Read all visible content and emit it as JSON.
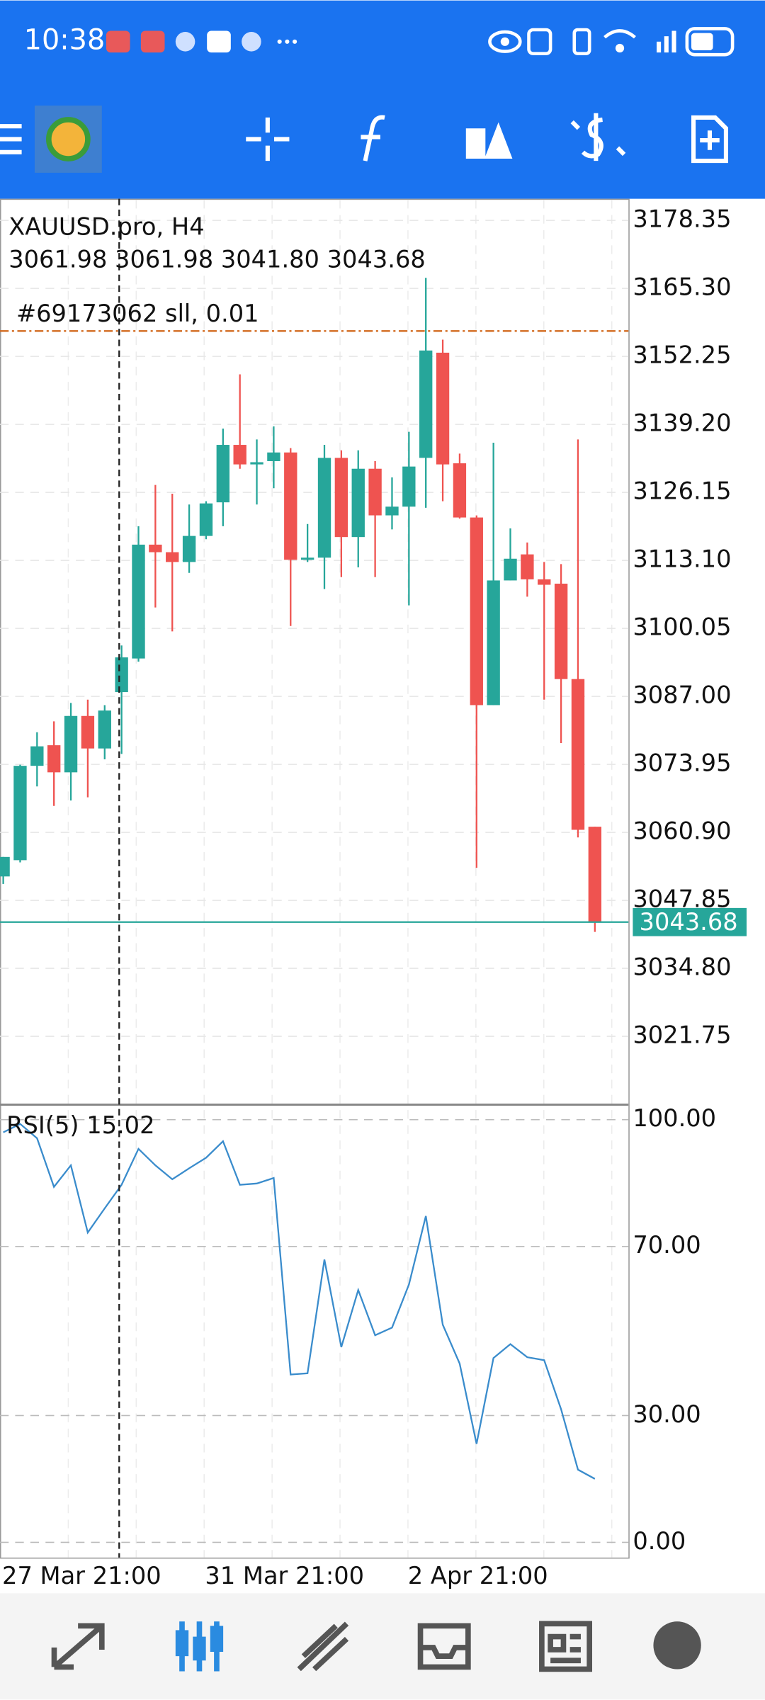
{
  "status_bar": {
    "time": "10:38"
  },
  "chart_data": [
    {
      "type": "candlestick",
      "title": "XAUUSD.pro, H4",
      "ohlc_text": "3061.98 3061.98 3041.80 3043.68",
      "categories": [
        "27 Mar 21:00",
        null,
        null,
        null,
        null,
        null,
        null,
        null,
        null,
        null,
        null,
        null,
        "31 Mar 21:00",
        null,
        null,
        null,
        null,
        null,
        null,
        null,
        null,
        null,
        null,
        null,
        "2 Apr 21:00",
        null,
        null,
        null,
        null,
        null,
        null,
        null,
        null,
        null,
        null,
        null
      ],
      "open": [
        3052.44,
        3055.56,
        3073.67,
        3077.62,
        3072.42,
        3083.24,
        3077.0,
        3087.82,
        3094.27,
        3116.12,
        3114.67,
        3112.79,
        3117.79,
        3124.24,
        3135.27,
        3131.52,
        3132.15,
        3133.81,
        3113.21,
        3113.62,
        3132.77,
        3117.58,
        3130.69,
        3121.74,
        3123.41,
        3132.77,
        3152.96,
        3131.73,
        3121.33,
        3085.32,
        3109.25,
        3114.25,
        3109.46,
        3108.63,
        3090.32,
        3061.98
      ],
      "high": [
        3056.18,
        3073.87,
        3080.12,
        3082.2,
        3085.74,
        3086.36,
        3085.32,
        3096.77,
        3119.66,
        3127.57,
        3125.9,
        3123.82,
        3124.45,
        3138.39,
        3148.8,
        3136.31,
        3138.81,
        3134.64,
        3120.08,
        3135.27,
        3134.23,
        3134.23,
        3132.15,
        3129.03,
        3137.77,
        3167.32,
        3155.46,
        3133.6,
        3121.74,
        3135.69,
        3119.24,
        3116.54,
        3112.79,
        3112.38,
        3136.31,
        3061.98
      ],
      "low": [
        3051.0,
        3055.14,
        3069.71,
        3065.97,
        3067.01,
        3067.63,
        3074.91,
        3075.95,
        3093.65,
        3104.05,
        3099.47,
        3110.71,
        3117.16,
        3119.66,
        3130.69,
        3123.82,
        3126.94,
        3100.51,
        3112.79,
        3107.59,
        3109.88,
        3111.75,
        3109.88,
        3119.04,
        3104.47,
        3123.2,
        3124.45,
        3121.12,
        3054.1,
        3085.32,
        3109.25,
        3106.13,
        3086.36,
        3078.04,
        3059.93,
        3041.8
      ],
      "close": [
        3056.18,
        3073.67,
        3077.41,
        3072.42,
        3083.24,
        3077.0,
        3084.28,
        3094.48,
        3116.12,
        3114.67,
        3112.79,
        3117.79,
        3124.03,
        3135.27,
        3131.52,
        3131.94,
        3133.81,
        3113.21,
        3113.62,
        3132.77,
        3117.58,
        3130.69,
        3121.74,
        3123.41,
        3131.11,
        3153.38,
        3131.52,
        3121.33,
        3085.32,
        3109.25,
        3113.42,
        3109.46,
        3108.42,
        3090.32,
        3061.39,
        3043.68
      ],
      "up_color": "#26a69a",
      "down_color": "#ef5350",
      "last_price_color": "#26a69a",
      "ylim": [
        3008.85,
        3182.5
      ],
      "yticks": [
        3178.35,
        {
          "value": 3165.3,
          "label": "3165.30"
        },
        3152.25,
        {
          "value": 3139.2,
          "label": "3139.20"
        },
        3126.15,
        {
          "value": 3113.1,
          "label": "3113.10"
        },
        3100.05,
        {
          "value": 3087,
          "label": "3087.00"
        },
        3073.95,
        {
          "value": 3060.9,
          "label": "3060.90"
        },
        3047.85,
        {
          "value": 3034.8,
          "label": "3034.80"
        },
        3021.75
      ],
      "grid": true,
      "annotations": [
        {
          "text": "#69173062 sll, 0.01",
          "value": 3157.12,
          "color": "#d2691e"
        }
      ]
    },
    {
      "type": "line",
      "title": "RSI(5)",
      "color": "#3a8ccc",
      "values": [
        97,
        99,
        95.6,
        84.1,
        89.2,
        73.3,
        79.0,
        84.6,
        93.1,
        89.2,
        85.9,
        88.5,
        91.0,
        94.9,
        84.6,
        84.9,
        86.2,
        39.7,
        40.0,
        66.9,
        46.2,
        59.7,
        49.0,
        50.8,
        61.0,
        77.2,
        51.5,
        42.3,
        23.3,
        43.6,
        46.9,
        43.8,
        43.1,
        31.5,
        17.2,
        15.02
      ],
      "ylim": [
        -3.6,
        103.3
      ],
      "yticks": [
        {
          "value": 100,
          "label": "100.00"
        },
        {
          "value": 70,
          "label": "70.00"
        },
        {
          "value": 30,
          "label": "30.00"
        },
        {
          "value": 0,
          "label": "0.00"
        }
      ]
    }
  ]
}
